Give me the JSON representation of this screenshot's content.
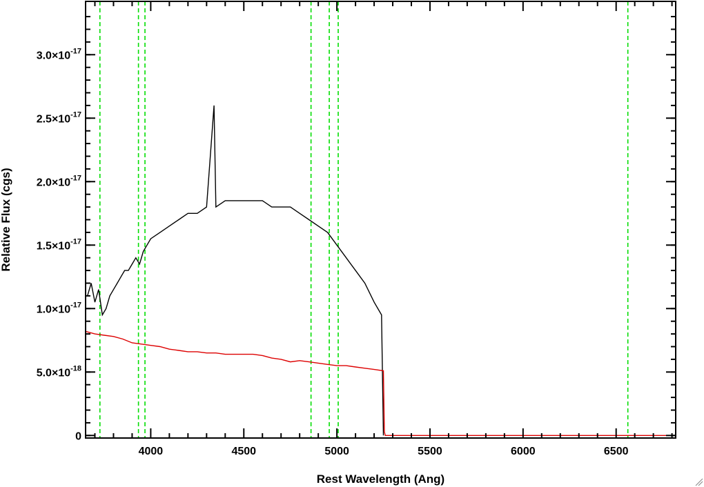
{
  "chart_data": {
    "type": "line",
    "title": "",
    "xlabel": "Rest Wavelength (Ang)",
    "ylabel": "Relative Flux (cgs)",
    "xlim": [
      3650,
      6820
    ],
    "ylim": [
      -2e-19,
      3.42e-17
    ],
    "x_ticks": [
      {
        "value": 4000,
        "label": "4000"
      },
      {
        "value": 4500,
        "label": "4500"
      },
      {
        "value": 5000,
        "label": "5000"
      },
      {
        "value": 5500,
        "label": "5500"
      },
      {
        "value": 6000,
        "label": "6000"
      },
      {
        "value": 6500,
        "label": "6500"
      }
    ],
    "y_ticks": [
      {
        "value": 0,
        "mantissa": "0",
        "exponent": ""
      },
      {
        "value": 5e-18,
        "mantissa": "5.0×10",
        "exponent": "-18"
      },
      {
        "value": 1e-17,
        "mantissa": "1.0×10",
        "exponent": "-17"
      },
      {
        "value": 1.5e-17,
        "mantissa": "1.5×10",
        "exponent": "-17"
      },
      {
        "value": 2e-17,
        "mantissa": "2.0×10",
        "exponent": "-17"
      },
      {
        "value": 2.5e-17,
        "mantissa": "2.5×10",
        "exponent": "-17"
      },
      {
        "value": 3e-17,
        "mantissa": "3.0×10",
        "exponent": "-17"
      }
    ],
    "vertical_lines": {
      "color": "#00dd00",
      "style": "dashed",
      "x": [
        3727,
        3934,
        3969,
        4861,
        4959,
        5007,
        6563
      ]
    },
    "series": [
      {
        "color": "#000000",
        "x": [
          3660,
          3680,
          3700,
          3720,
          3740,
          3760,
          3780,
          3800,
          3820,
          3840,
          3860,
          3880,
          3900,
          3920,
          3940,
          3960,
          3980,
          4000,
          4050,
          4100,
          4150,
          4200,
          4250,
          4300,
          4340,
          4350,
          4400,
          4450,
          4500,
          4550,
          4600,
          4650,
          4700,
          4750,
          4800,
          4850,
          4900,
          4950,
          5000,
          5050,
          5100,
          5150,
          5200,
          5240,
          5250
        ],
        "y": [
          1.1e-17,
          1.2e-17,
          1.05e-17,
          1.15e-17,
          9.5e-18,
          1e-17,
          1.1e-17,
          1.15e-17,
          1.2e-17,
          1.25e-17,
          1.3e-17,
          1.3e-17,
          1.35e-17,
          1.4e-17,
          1.35e-17,
          1.45e-17,
          1.5e-17,
          1.55e-17,
          1.6e-17,
          1.65e-17,
          1.7e-17,
          1.75e-17,
          1.75e-17,
          1.8e-17,
          2.6e-17,
          1.8e-17,
          1.85e-17,
          1.85e-17,
          1.85e-17,
          1.85e-17,
          1.85e-17,
          1.8e-17,
          1.8e-17,
          1.8e-17,
          1.75e-17,
          1.7e-17,
          1.65e-17,
          1.6e-17,
          1.5e-17,
          1.4e-17,
          1.3e-17,
          1.2e-17,
          1.05e-17,
          9.5e-18,
          0.0
        ]
      },
      {
        "color": "#dd0000",
        "x": [
          3650,
          3700,
          3750,
          3800,
          3850,
          3900,
          3950,
          4000,
          4050,
          4100,
          4150,
          4200,
          4250,
          4300,
          4350,
          4400,
          4450,
          4500,
          4550,
          4600,
          4650,
          4700,
          4750,
          4800,
          4850,
          4900,
          4950,
          5000,
          5050,
          5100,
          5150,
          5200,
          5250,
          5255,
          5260,
          6820
        ],
        "y": [
          8.2e-18,
          8e-18,
          7.9e-18,
          7.8e-18,
          7.6e-18,
          7.3e-18,
          7.2e-18,
          7.1e-18,
          7e-18,
          6.8e-18,
          6.7e-18,
          6.6e-18,
          6.6e-18,
          6.5e-18,
          6.5e-18,
          6.4e-18,
          6.4e-18,
          6.4e-18,
          6.4e-18,
          6.3e-18,
          6.1e-18,
          6e-18,
          5.8e-18,
          5.9e-18,
          5.8e-18,
          5.7e-18,
          5.6e-18,
          5.5e-18,
          5.5e-18,
          5.4e-18,
          5.3e-18,
          5.2e-18,
          5.1e-18,
          3e-19,
          0.0,
          0.0
        ]
      }
    ]
  }
}
